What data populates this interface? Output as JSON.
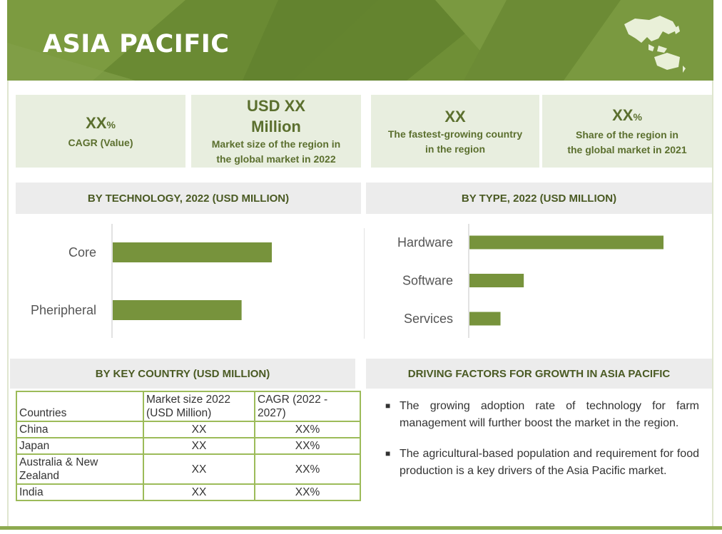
{
  "header": {
    "title": "ASIA PACIFIC"
  },
  "cards": [
    {
      "value": "XX",
      "unit": "%",
      "caption": "CAGR (Value)"
    },
    {
      "value_line1": "USD XX",
      "value_line2": "Million",
      "caption_line1": "Market size of the region in",
      "caption_line2": "the global market in 2022"
    },
    {
      "value": "XX",
      "caption_line1": "The fastest-growing country",
      "caption_line2": "in the region"
    },
    {
      "value": "XX",
      "unit": "%",
      "caption_line1": "Share of the region in",
      "caption_line2": "the global market in 2021"
    }
  ],
  "sections": {
    "technology": "BY  TECHNOLOGY, 2022 (USD MILLION)",
    "type": "BY TYPE, 2022 (USD MILLION)",
    "country": "BY KEY COUNTRY (USD MILLION)",
    "drivers": "DRIVING FACTORS  FOR GROWTH IN ASIA PACIFIC"
  },
  "chart_data": [
    {
      "type": "bar",
      "orientation": "horizontal",
      "title": "BY  TECHNOLOGY, 2022 (USD MILLION)",
      "categories": [
        "Core",
        "Pheripheral"
      ],
      "values": [
        100,
        81
      ],
      "color": "#77933c"
    },
    {
      "type": "bar",
      "orientation": "horizontal",
      "title": "BY TYPE, 2022 (USD MILLION)",
      "categories": [
        "Hardware",
        "Software",
        "Services"
      ],
      "values": [
        100,
        28,
        16
      ],
      "color": "#77933c"
    }
  ],
  "country_table": {
    "headers": [
      "Countries",
      "Market size 2022 (USD Million)",
      "CAGR (2022 - 2027)"
    ],
    "rows": [
      [
        "China",
        "XX",
        "XX%"
      ],
      [
        "Japan",
        "XX",
        "XX%"
      ],
      [
        "Australia & New Zealand",
        "XX",
        "XX%"
      ],
      [
        "India",
        "XX",
        "XX%"
      ]
    ]
  },
  "drivers": [
    "The growing adoption rate of technology for farm management will further boost the market in the region.",
    "The agricultural-based population and requirement for food production is a key drivers of the Asia Pacific market."
  ],
  "colors": {
    "header_green": "#6f8f36",
    "bar_green": "#77933c",
    "card_bg": "#e8eedf",
    "accent_text": "#5b6f2e"
  }
}
